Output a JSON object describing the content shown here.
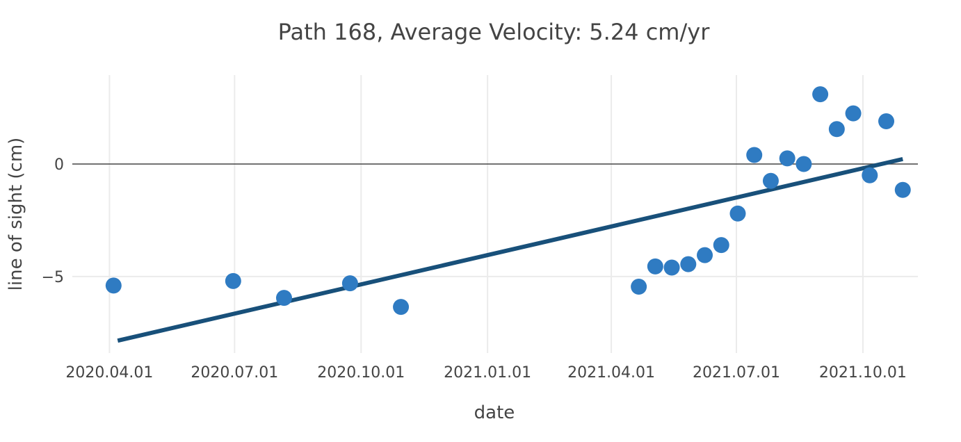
{
  "chart_data": {
    "type": "scatter",
    "title": "Path 168, Average Velocity: 5.24 cm/yr",
    "xlabel": "date",
    "ylabel": "line of sight (cm)",
    "x_ticks": [
      "2020.04.01",
      "2020.07.01",
      "2020.10.01",
      "2021.01.01",
      "2021.04.01",
      "2021.07.01",
      "2021.10.01"
    ],
    "y_ticks": [
      {
        "value": 0,
        "label": "0"
      },
      {
        "value": -5,
        "label": "−5"
      }
    ],
    "xlim": [
      "2020.03.05",
      "2021.11.10"
    ],
    "ylim": [
      -8.4,
      4.2
    ],
    "grid": true,
    "legend": "none",
    "colors": {
      "points": "#2f7bc2",
      "trend": "#18507a",
      "zero_line": "#444444",
      "grid": "#ebebeb"
    },
    "points": [
      {
        "x": "2020.04.04",
        "y": -5.4
      },
      {
        "x": "2020.06.30",
        "y": -5.2
      },
      {
        "x": "2020.08.06",
        "y": -5.95
      },
      {
        "x": "2020.09.23",
        "y": -5.3
      },
      {
        "x": "2020.10.30",
        "y": -6.35
      },
      {
        "x": "2021.04.21",
        "y": -5.45
      },
      {
        "x": "2021.05.03",
        "y": -4.55
      },
      {
        "x": "2021.05.15",
        "y": -4.6
      },
      {
        "x": "2021.05.27",
        "y": -4.45
      },
      {
        "x": "2021.06.08",
        "y": -4.05
      },
      {
        "x": "2021.06.20",
        "y": -3.6
      },
      {
        "x": "2021.07.02",
        "y": -2.2
      },
      {
        "x": "2021.07.14",
        "y": 0.4
      },
      {
        "x": "2021.07.26",
        "y": -0.75
      },
      {
        "x": "2021.08.07",
        "y": 0.25
      },
      {
        "x": "2021.08.19",
        "y": 0.0
      },
      {
        "x": "2021.08.31",
        "y": 3.1
      },
      {
        "x": "2021.09.12",
        "y": 1.55
      },
      {
        "x": "2021.09.24",
        "y": 2.25
      },
      {
        "x": "2021.10.06",
        "y": -0.5
      },
      {
        "x": "2021.10.18",
        "y": 1.9
      },
      {
        "x": "2021.10.30",
        "y": -1.15
      }
    ],
    "trend_line": [
      {
        "x": "2020.04.07",
        "y": -7.85
      },
      {
        "x": "2021.10.30",
        "y": 0.22
      }
    ]
  }
}
